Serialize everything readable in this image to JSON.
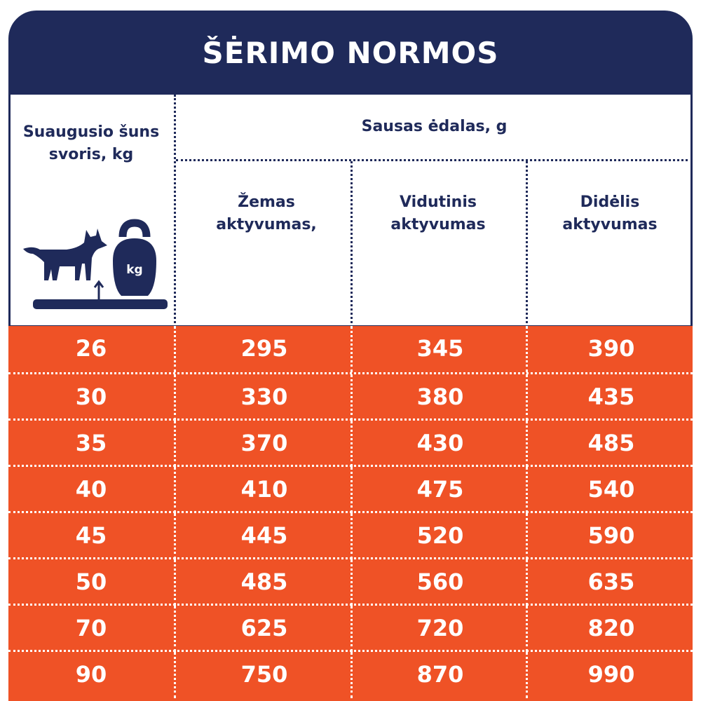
{
  "header": {
    "title": "ŠĖRIMO NORMOS"
  },
  "table": {
    "weight_header": "Suaugusio šuns svoris, kg",
    "food_header": "Sausas ėdalas, g",
    "columns": [
      "Žemas aktyvumas,",
      "Vidutinis aktyvumas",
      "Didėlis aktyvumas"
    ],
    "icon_label": "kg",
    "rows": [
      [
        26,
        295,
        345,
        390
      ],
      [
        30,
        330,
        380,
        435
      ],
      [
        35,
        370,
        430,
        485
      ],
      [
        40,
        410,
        475,
        540
      ],
      [
        45,
        445,
        520,
        590
      ],
      [
        50,
        485,
        560,
        635
      ],
      [
        70,
        625,
        720,
        820
      ],
      [
        90,
        750,
        870,
        990
      ]
    ]
  }
}
